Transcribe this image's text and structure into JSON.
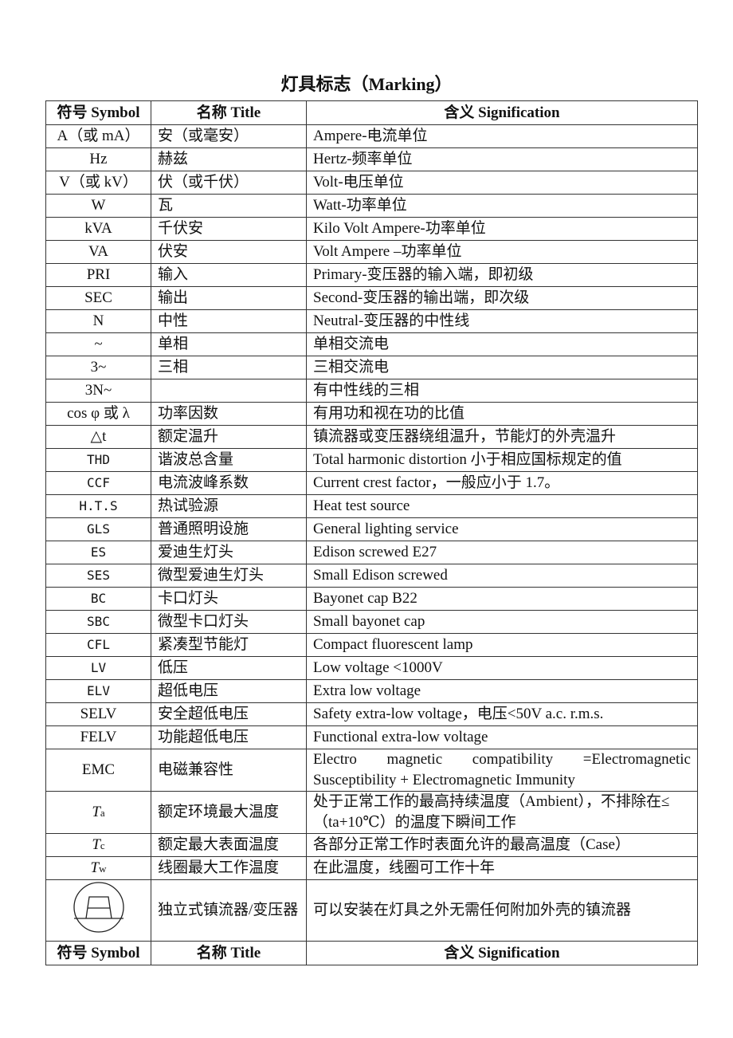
{
  "title": "灯具标志（Marking）",
  "header": {
    "symbol": "符号 Symbol",
    "title": "名称 Title",
    "signification": "含义 Signification"
  },
  "rows": [
    {
      "symbol": "A（或 mA）",
      "title": "安（或毫安）",
      "signification": "Ampere-电流单位"
    },
    {
      "symbol": "Hz",
      "title": "赫兹",
      "signification": "Hertz-频率单位"
    },
    {
      "symbol": "V（或 kV）",
      "title": "伏（或千伏）",
      "signification": "Volt-电压单位"
    },
    {
      "symbol": "W",
      "title": "瓦",
      "signification": "Watt-功率单位"
    },
    {
      "symbol": "kVA",
      "title": "千伏安",
      "signification": "Kilo Volt Ampere-功率单位"
    },
    {
      "symbol": "VA",
      "title": "伏安",
      "signification": "Volt Ampere –功率单位"
    },
    {
      "symbol": "PRI",
      "title": "输入",
      "signification": "Primary-变压器的输入端，即初级"
    },
    {
      "symbol": "SEC",
      "title": "输出",
      "signification": "Second-变压器的输出端，即次级"
    },
    {
      "symbol": "N",
      "title": "中性",
      "signification": "Neutral-变压器的中性线"
    },
    {
      "symbol": "~",
      "title": "单相",
      "signification": "单相交流电"
    },
    {
      "symbol": "3~",
      "title": "三相",
      "signification": "三相交流电"
    },
    {
      "symbol": "3N~",
      "title": "",
      "signification": "有中性线的三相"
    },
    {
      "symbol": "cos φ 或 λ",
      "title": "功率因数",
      "signification": "有用功和视在功的比值"
    },
    {
      "symbol": "△t",
      "title": "额定温升",
      "signification": "镇流器或变压器绕组温升，节能灯的外壳温升"
    },
    {
      "symbol": "THD",
      "title": "谐波总含量",
      "signification": "Total harmonic distortion 小于相应国标规定的值",
      "mono": true
    },
    {
      "symbol": "CCF",
      "title": "电流波峰系数",
      "signification": "Current crest factor，一般应小于 1.7。",
      "mono": true
    },
    {
      "symbol": "H.T.S",
      "title": "热试验源",
      "signification": "Heat test source",
      "mono": true
    },
    {
      "symbol": "GLS",
      "title": "普通照明设施",
      "signification": "General lighting service",
      "mono": true
    },
    {
      "symbol": "ES",
      "title": "爱迪生灯头",
      "signification": "Edison screwed    E27",
      "mono": true
    },
    {
      "symbol": "SES",
      "title": "微型爱迪生灯头",
      "signification": "Small Edison screwed",
      "mono": true
    },
    {
      "symbol": "BC",
      "title": "卡口灯头",
      "signification": "Bayonet cap    B22",
      "mono": true
    },
    {
      "symbol": "SBC",
      "title": "微型卡口灯头",
      "signification": "Small bayonet cap",
      "mono": true
    },
    {
      "symbol": "CFL",
      "title": "紧凑型节能灯",
      "signification": "Compact fluorescent lamp",
      "mono": true
    },
    {
      "symbol": "LV",
      "title": "低压",
      "signification": "Low voltage <1000V",
      "mono": true
    },
    {
      "symbol": "ELV",
      "title": "超低电压",
      "signification": "Extra low voltage",
      "mono": true
    },
    {
      "symbol": "SELV",
      "title": "安全超低电压",
      "signification": "Safety extra-low voltage，电压<50V a.c. r.m.s."
    },
    {
      "symbol": "FELV",
      "title": "功能超低电压",
      "signification": "Functional extra-low voltage"
    },
    {
      "symbol": "EMC",
      "title": "电磁兼容性",
      "signification": "Electro magnetic compatibility =Electromagnetic Susceptibility + Electromagnetic Immunity",
      "justify": true
    },
    {
      "symbol": "T",
      "sub": "a",
      "title": "额定环境最大温度",
      "signification": "处于正常工作的最高持续温度（Ambient），不排除在≤（ta+10℃）的温度下瞬间工作"
    },
    {
      "symbol": "T",
      "sub": "c",
      "title": "额定最大表面温度",
      "signification": "各部分正常工作时表面允许的最高温度（Case）"
    },
    {
      "symbol": "T",
      "sub": "w",
      "title": "线圈最大工作温度",
      "signification": "在此温度，线圈可工作十年"
    },
    {
      "symbol_icon": "independent-ballast-symbol-icon",
      "title": "独立式镇流器/变压器",
      "signification": "可以安装在灯具之外无需任何附加外壳的镇流器"
    }
  ]
}
